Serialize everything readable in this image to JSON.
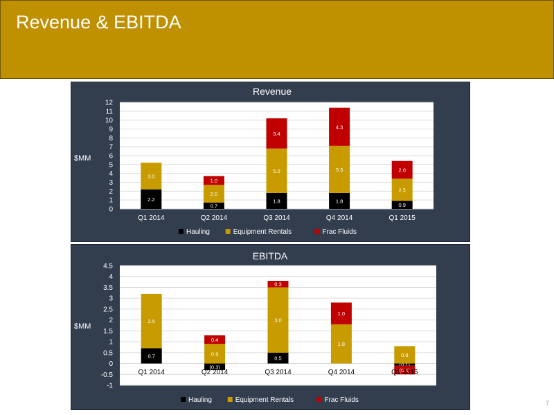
{
  "slide": {
    "title": "Revenue & EBITDA",
    "page_number": "7"
  },
  "colors": {
    "header": "#BF9000",
    "panel": "#323D4E",
    "hauling": "#000000",
    "equipment_rentals": "#C89B00",
    "frac_fluids": "#C00000"
  },
  "chart_data": [
    {
      "type": "bar",
      "stacked": true,
      "title": "Revenue",
      "ylabel": "$MM",
      "ylim": [
        0,
        12
      ],
      "yticks": [
        "0",
        "1",
        "2",
        "3",
        "4",
        "5",
        "6",
        "7",
        "8",
        "9",
        "10",
        "11",
        "12"
      ],
      "grid": true,
      "legend_position": "bottom",
      "categories": [
        "Q1 2014",
        "Q2 2014",
        "Q3 2014",
        "Q4 2014",
        "Q1 2015"
      ],
      "series": [
        {
          "name": "Hauling",
          "values": [
            2.2,
            0.7,
            1.8,
            1.8,
            0.9
          ],
          "labels": [
            "2.2",
            "0.7",
            "1.8",
            "1.8",
            "0.9"
          ]
        },
        {
          "name": "Equipment Rentals",
          "values": [
            3.0,
            2.0,
            5.0,
            5.3,
            2.5
          ],
          "labels": [
            "3.0",
            "2.0",
            "5.0",
            "5.3",
            "2.5"
          ]
        },
        {
          "name": "Frac Fluids",
          "values": [
            0,
            1.0,
            3.4,
            4.3,
            2.0
          ],
          "labels": [
            "",
            "1.0",
            "3.4",
            "4.3",
            "2.0"
          ]
        }
      ]
    },
    {
      "type": "bar",
      "stacked": true,
      "title": "EBITDA",
      "ylabel": "$MM",
      "ylim": [
        -1,
        4.5
      ],
      "yticks": [
        "-1",
        "-0.5",
        "0",
        "0.5",
        "1",
        "1.5",
        "2",
        "2.5",
        "3",
        "3.5",
        "4",
        "4.5"
      ],
      "grid": true,
      "legend_position": "bottom",
      "categories": [
        "Q1 2014",
        "Q2 2014",
        "Q3 2014",
        "Q4 2014",
        "Q1 2015"
      ],
      "series": [
        {
          "name": "Hauling",
          "values": [
            0.7,
            -0.3,
            0.5,
            0,
            -0.1
          ],
          "labels": [
            "0.7",
            "(0.3)",
            "0.5",
            "",
            "(0.1)"
          ]
        },
        {
          "name": "Equipment Rentals",
          "values": [
            2.5,
            0.9,
            3.0,
            1.8,
            0.8
          ],
          "labels": [
            "2.5",
            "0.9",
            "3.0",
            "1.8",
            "0.8"
          ]
        },
        {
          "name": "Frac Fluids",
          "values": [
            0,
            0.4,
            0.3,
            1.0,
            -0.4
          ],
          "labels": [
            "",
            "0.4",
            "0.3",
            "1.0",
            "(0.4)"
          ]
        }
      ]
    }
  ]
}
